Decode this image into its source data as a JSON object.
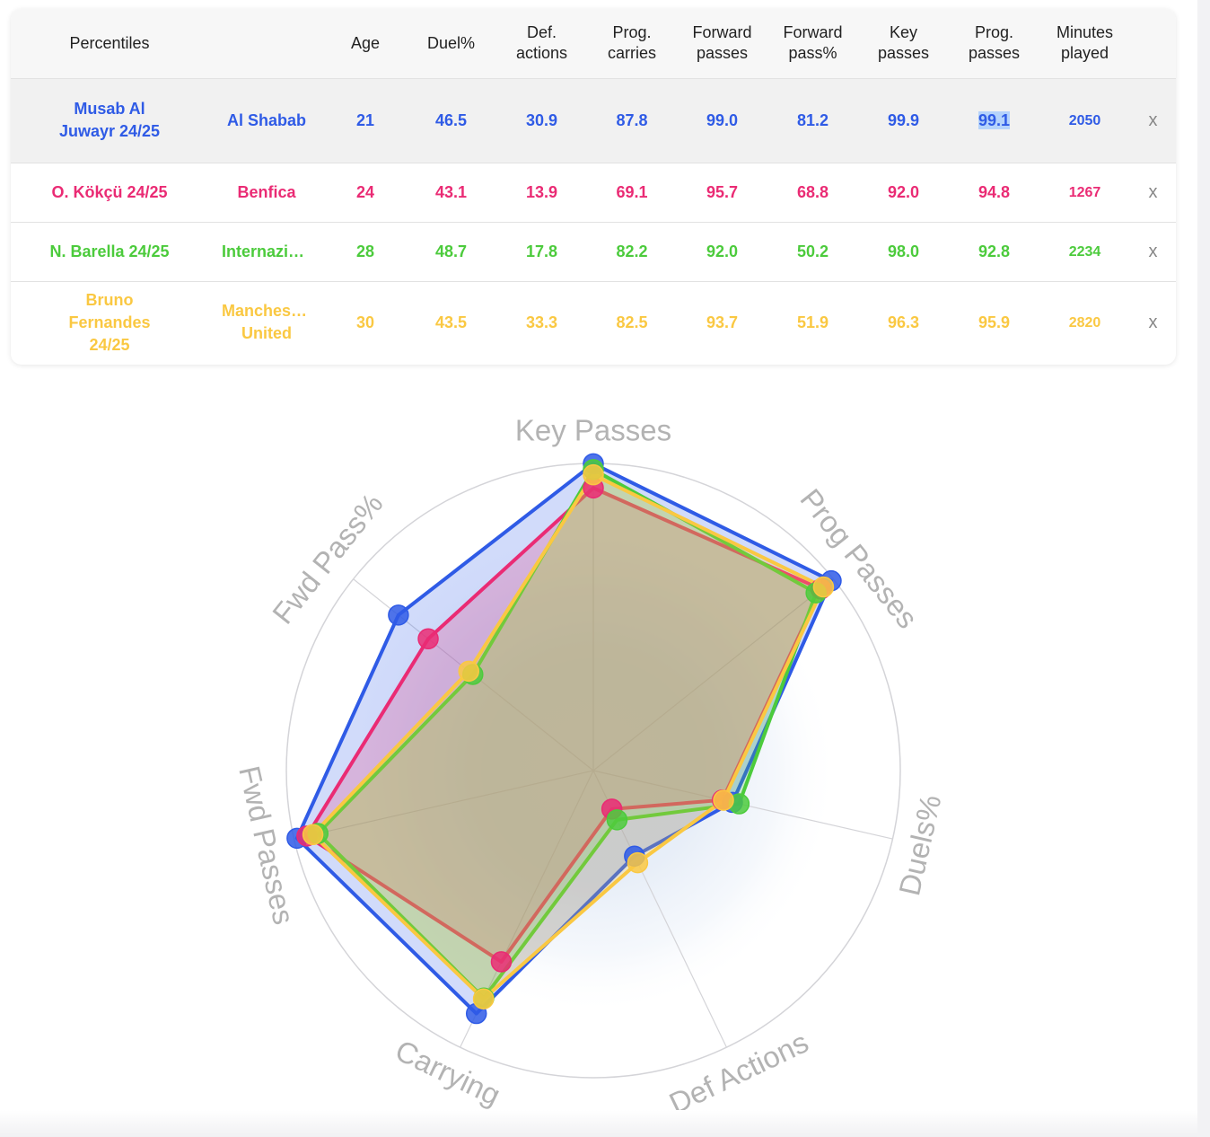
{
  "table": {
    "headers": [
      "Percentiles",
      "",
      "Age",
      "Duel%",
      "Def.\nactions",
      "Prog.\ncarries",
      "Forward\npasses",
      "Forward\npass%",
      "Key\npasses",
      "Prog.\npasses",
      "Minutes\nplayed"
    ],
    "remove_label": "x",
    "rows": [
      {
        "player": "Musab Al Juwayr 24/25",
        "club": "Al Shabab",
        "club_line2": "",
        "age": "21",
        "duel": "46.5",
        "def_actions": "30.9",
        "prog_carries": "87.8",
        "fwd_passes": "99.0",
        "fwd_pass_pct": "81.2",
        "key_passes": "99.9",
        "prog_passes": "99.1",
        "minutes": "2050",
        "color": "#2f5be6"
      },
      {
        "player": "O. Kökçü 24/25",
        "club": "Benfica",
        "club_line2": "",
        "age": "24",
        "duel": "43.1",
        "def_actions": "13.9",
        "prog_carries": "69.1",
        "fwd_passes": "95.7",
        "fwd_pass_pct": "68.8",
        "key_passes": "92.0",
        "prog_passes": "94.8",
        "minutes": "1267",
        "color": "#ea2b74"
      },
      {
        "player": "N. Barella 24/25",
        "club": "Internazionale",
        "club_line2": "",
        "age": "28",
        "duel": "48.7",
        "def_actions": "17.8",
        "prog_carries": "82.2",
        "fwd_passes": "92.0",
        "fwd_pass_pct": "50.2",
        "key_passes": "98.0",
        "prog_passes": "92.8",
        "minutes": "2234",
        "color": "#4ccb3c"
      },
      {
        "player": "Bruno Fernandes 24/25",
        "club": "Manchester",
        "club_line2": "United",
        "age": "30",
        "duel": "43.5",
        "def_actions": "33.3",
        "prog_carries": "82.5",
        "fwd_passes": "93.7",
        "fwd_pass_pct": "51.9",
        "key_passes": "96.3",
        "prog_passes": "95.9",
        "minutes": "2820",
        "color": "#fac842"
      }
    ]
  },
  "chart_data": {
    "type": "radar",
    "axes": [
      "Key Passes",
      "Prog Passes",
      "Duels%",
      "Def Actions",
      "Carrying",
      "Fwd Passes",
      "Fwd Pass%"
    ],
    "range": [
      0,
      100
    ],
    "grid": true,
    "series": [
      {
        "name": "Musab Al Juwayr 24/25",
        "color": "#2f5be6",
        "values": [
          99.9,
          99.1,
          46.5,
          30.9,
          87.8,
          99.0,
          81.2
        ]
      },
      {
        "name": "O. Kökçü 24/25",
        "color": "#ea2b74",
        "values": [
          92.0,
          94.8,
          43.1,
          13.9,
          69.1,
          95.7,
          68.8
        ]
      },
      {
        "name": "N. Barella 24/25",
        "color": "#4ccb3c",
        "values": [
          98.0,
          92.8,
          48.7,
          17.8,
          82.2,
          92.0,
          50.2
        ]
      },
      {
        "name": "Bruno Fernandes 24/25",
        "color": "#fac842",
        "values": [
          96.3,
          95.9,
          43.5,
          33.3,
          82.5,
          93.7,
          51.9
        ]
      }
    ]
  }
}
